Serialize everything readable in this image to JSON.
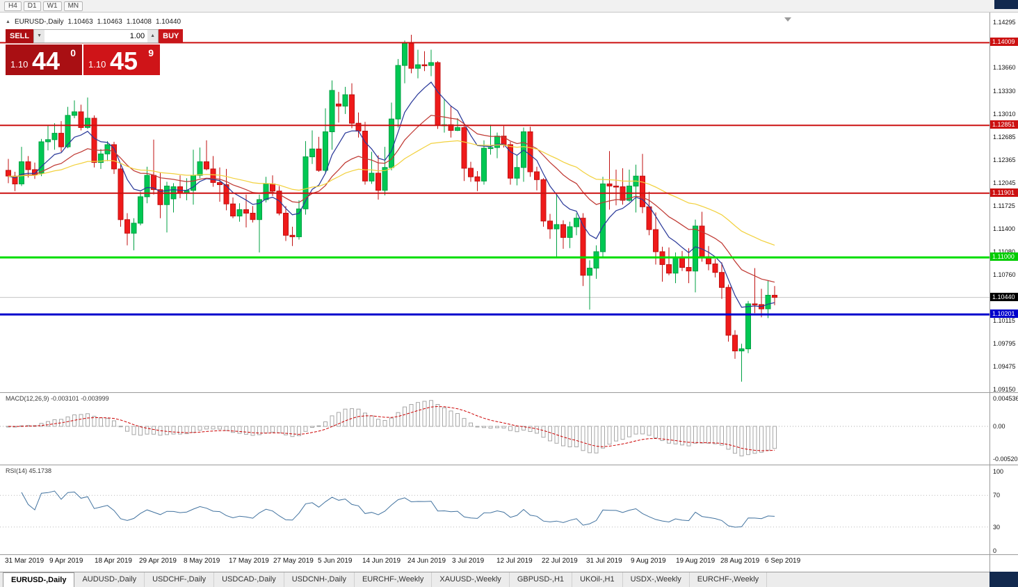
{
  "toolbar": {
    "timeframes": [
      "H4",
      "D1",
      "W1",
      "MN"
    ]
  },
  "chart_header": {
    "collapse_icon": "▲",
    "symbol_title": "EURUSD-,Daily",
    "open": "1.10463",
    "high": "1.10463",
    "low": "1.10408",
    "close": "1.10440"
  },
  "trade_panel": {
    "sell_label": "SELL",
    "buy_label": "BUY",
    "volume": "1.00",
    "volume_down_icon": "▼",
    "volume_up_icon": "▲",
    "sell_price": {
      "prefix": "1.10",
      "big": "44",
      "sup": "0"
    },
    "buy_price": {
      "prefix": "1.10",
      "big": "45",
      "sup": "9"
    }
  },
  "chart_data": {
    "type": "candlestick",
    "symbol": "EURUSD",
    "timeframe": "Daily",
    "price_axis": {
      "top": {
        "value": 1.14295
      },
      "bottom": {
        "value": 1.0915
      },
      "ticks": [
        "1.14295",
        "1.13660",
        "1.13330",
        "1.13010",
        "1.12685",
        "1.12365",
        "1.12045",
        "1.11725",
        "1.11400",
        "1.11080",
        "1.10760",
        "1.10115",
        "1.09795",
        "1.09475",
        "1.09150"
      ]
    },
    "level_labels": [
      {
        "text": "1.14009",
        "value": 1.14009,
        "bg": "#cc1111"
      },
      {
        "text": "1.12851",
        "value": 1.12851,
        "bg": "#cc1111"
      },
      {
        "text": "1.11901",
        "value": 1.11901,
        "bg": "#cc1111"
      },
      {
        "text": "1.11000",
        "value": 1.11,
        "bg": "#00cc00"
      },
      {
        "text": "1.10440",
        "value": 1.1044,
        "bg": "#000000"
      },
      {
        "text": "1.10201",
        "value": 1.10201,
        "bg": "#0000cc"
      }
    ],
    "levels": [
      {
        "value": 1.14009,
        "color": "#cc1111",
        "width": 2
      },
      {
        "value": 1.12851,
        "color": "#cc1111",
        "width": 2
      },
      {
        "value": 1.11901,
        "color": "#cc1111",
        "width": 2
      },
      {
        "value": 1.11,
        "color": "#00dd00",
        "width": 3
      },
      {
        "value": 1.10201,
        "color": "#0000cc",
        "width": 3
      }
    ],
    "current_price": 1.1044,
    "candle_up_color": "#00c853",
    "candle_down_color": "#ef1a1a",
    "moving_averages": [
      {
        "period": 8,
        "color": "#2b3a9a"
      },
      {
        "period": 20,
        "color": "#c03a34"
      },
      {
        "period": 45,
        "color": "#f2d13e"
      }
    ],
    "x_labels": [
      "31 Mar 2019",
      "9 Apr 2019",
      "18 Apr 2019",
      "29 Apr 2019",
      "8 May 2019",
      "17 May 2019",
      "27 May 2019",
      "5 Jun 2019",
      "14 Jun 2019",
      "24 Jun 2019",
      "3 Jul 2019",
      "12 Jul 2019",
      "22 Jul 2019",
      "31 Jul 2019",
      "9 Aug 2019",
      "19 Aug 2019",
      "28 Aug 2019",
      "6 Sep 2019"
    ],
    "macd": {
      "label": "MACD(12,26,9)",
      "values_text": "-0.003101 -0.003999",
      "fast": 12,
      "slow": 26,
      "signal": 9,
      "range": [
        -0.005205,
        0.004536
      ],
      "axis": [
        {
          "text": "0.004536",
          "v": 0.004536
        },
        {
          "text": "0.00",
          "v": 0
        },
        {
          "text": "-0.005205",
          "v": -0.005205
        }
      ],
      "hist_color": "#a6a6a6",
      "signal_color": "#cc0000"
    },
    "rsi": {
      "label": "RSI(14)",
      "value_text": "45.1738",
      "period": 14,
      "axis": [
        {
          "text": "100",
          "v": 100
        },
        {
          "text": "70",
          "v": 70
        },
        {
          "text": "30",
          "v": 30
        },
        {
          "text": "0",
          "v": 0
        }
      ],
      "guides": [
        70,
        30
      ],
      "color": "#41729f"
    },
    "candles": [
      [
        1.1222,
        1.1238,
        1.1204,
        1.1214
      ],
      [
        1.1214,
        1.122,
        1.1193,
        1.1203
      ],
      [
        1.1203,
        1.1255,
        1.12,
        1.1234
      ],
      [
        1.1234,
        1.1242,
        1.1212,
        1.1223
      ],
      [
        1.1223,
        1.1233,
        1.121,
        1.1216
      ],
      [
        1.1218,
        1.1266,
        1.1214,
        1.1262
      ],
      [
        1.1262,
        1.1285,
        1.125,
        1.1265
      ],
      [
        1.1265,
        1.1288,
        1.1251,
        1.1274
      ],
      [
        1.1274,
        1.1291,
        1.1248,
        1.1255
      ],
      [
        1.1255,
        1.1311,
        1.1253,
        1.1299
      ],
      [
        1.1299,
        1.132,
        1.1295,
        1.1304
      ],
      [
        1.1304,
        1.1314,
        1.1278,
        1.1282
      ],
      [
        1.1282,
        1.1324,
        1.128,
        1.1295
      ],
      [
        1.1295,
        1.1299,
        1.1226,
        1.1233
      ],
      [
        1.1233,
        1.1252,
        1.1224,
        1.1245
      ],
      [
        1.1245,
        1.1263,
        1.1235,
        1.1258
      ],
      [
        1.1258,
        1.1262,
        1.1217,
        1.1224
      ],
      [
        1.1224,
        1.123,
        1.1143,
        1.1153
      ],
      [
        1.1153,
        1.1162,
        1.1117,
        1.1134
      ],
      [
        1.1134,
        1.1155,
        1.111,
        1.1148
      ],
      [
        1.1148,
        1.1192,
        1.1145,
        1.1185
      ],
      [
        1.1185,
        1.1227,
        1.1176,
        1.1215
      ],
      [
        1.1215,
        1.1265,
        1.1188,
        1.1195
      ],
      [
        1.1195,
        1.1219,
        1.1155,
        1.1174
      ],
      [
        1.1174,
        1.1206,
        1.1135,
        1.12
      ],
      [
        1.1182,
        1.1204,
        1.1163,
        1.1199
      ],
      [
        1.1199,
        1.1215,
        1.1183,
        1.119
      ],
      [
        1.119,
        1.1211,
        1.118,
        1.1194
      ],
      [
        1.1194,
        1.1251,
        1.1174,
        1.1215
      ],
      [
        1.1215,
        1.1254,
        1.1211,
        1.1234
      ],
      [
        1.1234,
        1.1264,
        1.1222,
        1.1224
      ],
      [
        1.1224,
        1.1242,
        1.1199,
        1.1205
      ],
      [
        1.1205,
        1.1226,
        1.1178,
        1.1202
      ],
      [
        1.1202,
        1.1224,
        1.1166,
        1.1175
      ],
      [
        1.1175,
        1.1184,
        1.1155,
        1.1158
      ],
      [
        1.1158,
        1.1176,
        1.115,
        1.1167
      ],
      [
        1.1167,
        1.1188,
        1.1142,
        1.1162
      ],
      [
        1.1162,
        1.1172,
        1.1149,
        1.1153
      ],
      [
        1.1153,
        1.1188,
        1.1107,
        1.1181
      ],
      [
        1.1181,
        1.1213,
        1.1177,
        1.1203
      ],
      [
        1.1203,
        1.1215,
        1.1186,
        1.1193
      ],
      [
        1.1193,
        1.12,
        1.1159,
        1.1162
      ],
      [
        1.1162,
        1.1172,
        1.1123,
        1.1131
      ],
      [
        1.1131,
        1.1143,
        1.1116,
        1.1129
      ],
      [
        1.1129,
        1.118,
        1.1125,
        1.1168
      ],
      [
        1.1168,
        1.1263,
        1.116,
        1.1241
      ],
      [
        1.1241,
        1.1278,
        1.1231,
        1.1252
      ],
      [
        1.1252,
        1.1269,
        1.122,
        1.1222
      ],
      [
        1.1222,
        1.1309,
        1.1219,
        1.1276
      ],
      [
        1.1276,
        1.1348,
        1.1251,
        1.1334
      ],
      [
        1.1315,
        1.1332,
        1.1289,
        1.1312
      ],
      [
        1.1312,
        1.1339,
        1.1301,
        1.1328
      ],
      [
        1.1328,
        1.1344,
        1.1281,
        1.1288
      ],
      [
        1.1288,
        1.1303,
        1.1268,
        1.1277
      ],
      [
        1.1277,
        1.129,
        1.1202,
        1.1207
      ],
      [
        1.1207,
        1.1248,
        1.1203,
        1.1218
      ],
      [
        1.1218,
        1.1243,
        1.1181,
        1.1194
      ],
      [
        1.1194,
        1.1255,
        1.1187,
        1.1226
      ],
      [
        1.1226,
        1.1317,
        1.1222,
        1.1294
      ],
      [
        1.1294,
        1.1378,
        1.1282,
        1.1369
      ],
      [
        1.1369,
        1.1404,
        1.1344,
        1.14
      ],
      [
        1.14,
        1.1412,
        1.1358,
        1.1365
      ],
      [
        1.1365,
        1.1391,
        1.1351,
        1.137
      ],
      [
        1.137,
        1.1389,
        1.1361,
        1.1369
      ],
      [
        1.1369,
        1.1391,
        1.1354,
        1.1373
      ],
      [
        1.1373,
        1.1375,
        1.128,
        1.1285
      ],
      [
        1.1285,
        1.1322,
        1.1275,
        1.1286
      ],
      [
        1.1286,
        1.1312,
        1.1268,
        1.1278
      ],
      [
        1.1278,
        1.1295,
        1.1277,
        1.1282
      ],
      [
        1.1282,
        1.1288,
        1.1207,
        1.1225
      ],
      [
        1.1225,
        1.1234,
        1.1206,
        1.1213
      ],
      [
        1.1213,
        1.1221,
        1.1193,
        1.1207
      ],
      [
        1.1207,
        1.1264,
        1.1202,
        1.1253
      ],
      [
        1.1253,
        1.1286,
        1.1244,
        1.1254
      ],
      [
        1.1254,
        1.1275,
        1.1239,
        1.127
      ],
      [
        1.127,
        1.1284,
        1.1254,
        1.1258
      ],
      [
        1.1258,
        1.1262,
        1.1202,
        1.1211
      ],
      [
        1.1211,
        1.1243,
        1.1201,
        1.1226
      ],
      [
        1.1226,
        1.1282,
        1.1206,
        1.1276
      ],
      [
        1.1276,
        1.1283,
        1.1213,
        1.122
      ],
      [
        1.122,
        1.1227,
        1.1194,
        1.1209
      ],
      [
        1.1209,
        1.1211,
        1.1143,
        1.1151
      ],
      [
        1.1151,
        1.1161,
        1.1126,
        1.114
      ],
      [
        1.114,
        1.1188,
        1.1101,
        1.1146
      ],
      [
        1.1146,
        1.1152,
        1.1112,
        1.1128
      ],
      [
        1.1128,
        1.115,
        1.1113,
        1.1143
      ],
      [
        1.1143,
        1.1162,
        1.1131,
        1.1155
      ],
      [
        1.1155,
        1.1162,
        1.106,
        1.1075
      ],
      [
        1.1075,
        1.1096,
        1.1027,
        1.1085
      ],
      [
        1.1085,
        1.1117,
        1.107,
        1.1108
      ],
      [
        1.1108,
        1.1213,
        1.1101,
        1.1203
      ],
      [
        1.1203,
        1.1249,
        1.1167,
        1.12
      ],
      [
        1.12,
        1.1223,
        1.1173,
        1.1199
      ],
      [
        1.1199,
        1.1225,
        1.1174,
        1.118
      ],
      [
        1.118,
        1.1223,
        1.1178,
        1.12
      ],
      [
        1.12,
        1.123,
        1.1163,
        1.1214
      ],
      [
        1.1214,
        1.1245,
        1.1162,
        1.1171
      ],
      [
        1.1171,
        1.1192,
        1.1131,
        1.1139
      ],
      [
        1.1139,
        1.1163,
        1.109,
        1.1108
      ],
      [
        1.1108,
        1.1115,
        1.1066,
        1.109
      ],
      [
        1.109,
        1.1114,
        1.1075,
        1.1078
      ],
      [
        1.1078,
        1.1107,
        1.1064,
        1.11
      ],
      [
        1.11,
        1.1109,
        1.1081,
        1.1086
      ],
      [
        1.1086,
        1.1113,
        1.1064,
        1.1081
      ],
      [
        1.1081,
        1.1153,
        1.1051,
        1.1144
      ],
      [
        1.1144,
        1.1164,
        1.1094,
        1.1101
      ],
      [
        1.1101,
        1.1116,
        1.1082,
        1.1091
      ],
      [
        1.1091,
        1.1098,
        1.1072,
        1.1079
      ],
      [
        1.1079,
        1.1093,
        1.1042,
        1.1058
      ],
      [
        1.1058,
        1.1062,
        1.0982,
        1.0991
      ],
      [
        1.0991,
        1.0998,
        1.0958,
        1.0969
      ],
      [
        1.0969,
        1.0979,
        1.0926,
        1.0972
      ],
      [
        1.0972,
        1.1039,
        1.0966,
        1.1035
      ],
      [
        1.1035,
        1.1085,
        1.1022,
        1.1034
      ],
      [
        1.1034,
        1.1056,
        1.1016,
        1.1028
      ],
      [
        1.1028,
        1.1067,
        1.1015,
        1.1047
      ],
      [
        1.1047,
        1.106,
        1.1033,
        1.1044
      ]
    ]
  },
  "tabs": [
    {
      "label": "EURUSD-,Daily",
      "active": true
    },
    {
      "label": "AUDUSD-,Daily",
      "active": false
    },
    {
      "label": "USDCHF-,Daily",
      "active": false
    },
    {
      "label": "USDCAD-,Daily",
      "active": false
    },
    {
      "label": "USDCNH-,Daily",
      "active": false
    },
    {
      "label": "EURCHF-,Weekly",
      "active": false
    },
    {
      "label": "XAUUSD-,Weekly",
      "active": false
    },
    {
      "label": "GBPUSD-,H1",
      "active": false
    },
    {
      "label": "UKOil-,H1",
      "active": false
    },
    {
      "label": "USDX-,Weekly",
      "active": false
    },
    {
      "label": "EURCHF-,Weekly",
      "active": false
    }
  ]
}
